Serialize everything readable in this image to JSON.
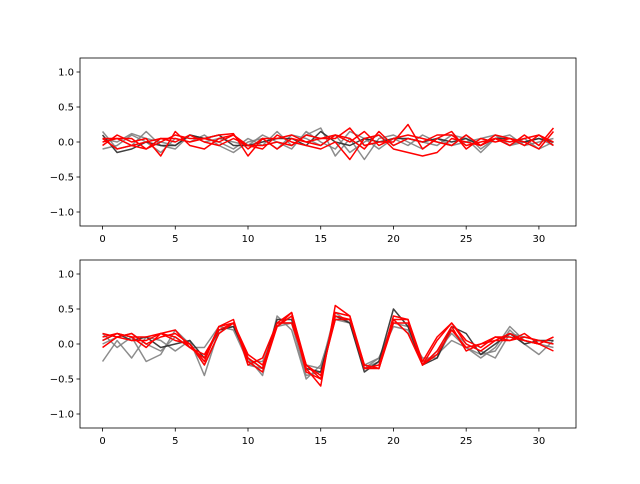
{
  "chart_data": [
    {
      "type": "line",
      "title": "",
      "xlabel": "",
      "ylabel": "",
      "xlim": [
        -1.55,
        32.55
      ],
      "ylim": [
        -1.2,
        1.2
      ],
      "xticks": [
        0,
        5,
        10,
        15,
        20,
        25,
        30
      ],
      "yticks": [
        -1.0,
        -0.5,
        0.0,
        0.5,
        1.0
      ],
      "ytick_labels": [
        "−1.0",
        "−0.5",
        "0.0",
        "0.5",
        "1.0"
      ],
      "grid": false,
      "x": [
        0,
        1,
        2,
        3,
        4,
        5,
        6,
        7,
        8,
        9,
        10,
        11,
        12,
        13,
        14,
        15,
        16,
        17,
        18,
        19,
        20,
        21,
        22,
        23,
        24,
        25,
        26,
        27,
        28,
        29,
        30,
        31
      ],
      "series_colors": {
        "gray": "#808080",
        "dark": "#2b2b2b",
        "red": "#ff0000"
      },
      "series": [
        {
          "color": "#808080",
          "values": [
            0.15,
            -0.1,
            -0.05,
            0.15,
            -0.05,
            -0.1,
            0.1,
            0.05,
            0.0,
            -0.1,
            0.05,
            -0.05,
            0.15,
            -0.05,
            0.1,
            0.2,
            -0.2,
            0.05,
            -0.25,
            0.05,
            0.1,
            0.0,
            -0.1,
            0.05,
            -0.05,
            0.1,
            -0.1,
            0.05,
            -0.05,
            0.0,
            0.05,
            -0.05
          ]
        },
        {
          "color": "#808080",
          "values": [
            -0.1,
            -0.05,
            0.1,
            0.0,
            -0.15,
            0.05,
            0.0,
            0.1,
            -0.05,
            -0.15,
            0.0,
            0.05,
            -0.1,
            0.1,
            0.05,
            -0.05,
            0.1,
            -0.15,
            0.0,
            0.1,
            -0.05,
            0.05,
            0.0,
            -0.05,
            0.1,
            0.05,
            -0.15,
            0.05,
            0.1,
            -0.05,
            0.0,
            0.05
          ]
        },
        {
          "color": "#808080",
          "values": [
            0.05,
            0.0,
            0.12,
            0.05,
            0.0,
            -0.05,
            0.1,
            0.0,
            0.05,
            0.0,
            -0.05,
            0.1,
            0.0,
            -0.1,
            0.15,
            0.0,
            -0.1,
            0.15,
            0.05,
            -0.1,
            0.05,
            -0.05,
            0.1,
            0.0,
            -0.05,
            0.0,
            0.05,
            0.1,
            -0.05,
            0.05,
            -0.1,
            0.0
          ]
        },
        {
          "color": "#2b2b2b",
          "values": [
            0.1,
            -0.15,
            -0.1,
            0.0,
            -0.05,
            -0.05,
            0.1,
            0.05,
            0.1,
            -0.05,
            -0.05,
            0.0,
            0.05,
            0.05,
            -0.05,
            0.15,
            0.0,
            -0.05,
            0.05,
            0.0,
            0.05,
            0.05,
            0.0,
            0.05,
            0.0,
            0.05,
            -0.05,
            0.05,
            0.05,
            0.0,
            0.05,
            0.0
          ]
        },
        {
          "color": "#ff0000",
          "values": [
            0.0,
            0.05,
            -0.05,
            -0.1,
            0.05,
            0.05,
            0.0,
            0.05,
            0.1,
            0.12,
            -0.2,
            0.05,
            -0.1,
            0.05,
            0.0,
            0.05,
            0.05,
            0.2,
            -0.05,
            0.0,
            0.0,
            0.25,
            -0.1,
            0.05,
            0.15,
            -0.1,
            0.05,
            0.0,
            0.05,
            0.0,
            -0.1,
            0.15
          ]
        },
        {
          "color": "#ff0000",
          "values": [
            -0.05,
            0.1,
            0.0,
            0.05,
            -0.2,
            0.15,
            -0.05,
            -0.1,
            0.05,
            0.1,
            -0.05,
            -0.1,
            0.1,
            0.0,
            -0.05,
            -0.1,
            0.0,
            -0.25,
            0.05,
            0.1,
            -0.1,
            -0.15,
            -0.2,
            -0.15,
            0.05,
            0.0,
            -0.05,
            0.1,
            0.05,
            -0.05,
            0.1,
            0.0
          ]
        },
        {
          "color": "#ff0000",
          "values": [
            0.05,
            -0.1,
            -0.05,
            0.0,
            0.05,
            0.0,
            0.1,
            0.0,
            -0.05,
            0.05,
            -0.05,
            -0.05,
            0.0,
            -0.05,
            0.1,
            0.05,
            0.1,
            0.0,
            0.15,
            -0.05,
            0.05,
            0.1,
            0.05,
            0.0,
            -0.05,
            0.1,
            -0.05,
            0.05,
            0.0,
            0.05,
            0.1,
            -0.05
          ]
        },
        {
          "color": "#ff0000",
          "values": [
            0.05,
            0.05,
            0.05,
            -0.1,
            0.0,
            0.1,
            0.05,
            0.05,
            0.0,
            0.1,
            -0.1,
            0.05,
            0.05,
            0.1,
            0.0,
            -0.05,
            0.1,
            0.05,
            -0.1,
            0.15,
            -0.05,
            0.05,
            0.0,
            0.1,
            0.1,
            -0.05,
            0.0,
            0.05,
            -0.05,
            0.1,
            -0.05,
            0.2
          ]
        }
      ]
    },
    {
      "type": "line",
      "title": "",
      "xlabel": "",
      "ylabel": "",
      "xlim": [
        -1.55,
        32.55
      ],
      "ylim": [
        -1.2,
        1.2
      ],
      "xticks": [
        0,
        5,
        10,
        15,
        20,
        25,
        30
      ],
      "yticks": [
        -1.0,
        -0.5,
        0.0,
        0.5,
        1.0
      ],
      "ytick_labels": [
        "−1.0",
        "−0.5",
        "0.0",
        "0.5",
        "1.0"
      ],
      "grid": false,
      "x": [
        0,
        1,
        2,
        3,
        4,
        5,
        6,
        7,
        8,
        9,
        10,
        11,
        12,
        13,
        14,
        15,
        16,
        17,
        18,
        19,
        20,
        21,
        22,
        23,
        24,
        25,
        26,
        27,
        28,
        29,
        30,
        31
      ],
      "series": [
        {
          "color": "#808080",
          "values": [
            -0.25,
            0.05,
            -0.2,
            0.1,
            0.05,
            -0.1,
            0.05,
            -0.45,
            0.2,
            0.25,
            -0.2,
            -0.45,
            0.4,
            0.2,
            -0.5,
            -0.3,
            0.35,
            0.3,
            -0.35,
            -0.2,
            0.25,
            0.2,
            -0.3,
            -0.1,
            0.15,
            -0.05,
            -0.15,
            -0.1,
            0.2,
            0.0,
            -0.15,
            0.05
          ]
        },
        {
          "color": "#808080",
          "values": [
            0.15,
            -0.05,
            0.1,
            -0.25,
            -0.15,
            0.2,
            0.0,
            -0.3,
            0.15,
            0.3,
            -0.3,
            -0.35,
            0.3,
            0.3,
            -0.3,
            -0.35,
            0.45,
            0.3,
            -0.3,
            -0.2,
            0.3,
            0.25,
            -0.25,
            -0.15,
            0.05,
            -0.05,
            -0.2,
            -0.05,
            0.25,
            0.05,
            0.0,
            -0.05
          ]
        },
        {
          "color": "#808080",
          "values": [
            0.0,
            0.1,
            0.15,
            0.0,
            -0.1,
            0.1,
            -0.05,
            -0.05,
            0.25,
            0.2,
            -0.25,
            -0.25,
            0.25,
            0.3,
            -0.45,
            -0.4,
            0.35,
            0.35,
            -0.35,
            -0.25,
            0.35,
            0.15,
            -0.2,
            -0.2,
            0.2,
            0.0,
            -0.1,
            -0.2,
            0.15,
            0.1,
            0.05,
            0.0
          ]
        },
        {
          "color": "#2b2b2b",
          "values": [
            0.05,
            0.15,
            0.05,
            0.1,
            -0.05,
            0.0,
            0.05,
            -0.2,
            0.2,
            0.25,
            -0.2,
            -0.35,
            0.35,
            0.35,
            -0.35,
            -0.4,
            0.4,
            0.3,
            -0.4,
            -0.25,
            0.5,
            0.25,
            -0.3,
            -0.2,
            0.25,
            0.15,
            -0.15,
            0.0,
            0.15,
            0.0,
            0.05,
            0.05
          ]
        },
        {
          "color": "#ff0000",
          "values": [
            0.1,
            0.15,
            0.1,
            -0.05,
            0.15,
            0.05,
            0.0,
            -0.25,
            0.25,
            0.35,
            -0.3,
            -0.2,
            0.3,
            0.45,
            -0.35,
            -0.6,
            0.55,
            0.4,
            -0.3,
            -0.35,
            0.4,
            0.35,
            -0.25,
            0.1,
            0.3,
            0.0,
            -0.1,
            0.05,
            0.05,
            0.15,
            0.0,
            -0.1
          ]
        },
        {
          "color": "#ff0000",
          "values": [
            0.15,
            0.1,
            0.05,
            0.05,
            0.15,
            0.2,
            -0.05,
            -0.15,
            0.2,
            0.3,
            -0.15,
            -0.3,
            0.25,
            0.45,
            -0.3,
            -0.45,
            0.35,
            0.35,
            -0.3,
            -0.35,
            0.35,
            0.15,
            -0.3,
            0.05,
            0.3,
            0.05,
            -0.05,
            0.1,
            0.1,
            0.05,
            0.0,
            0.1
          ]
        },
        {
          "color": "#ff0000",
          "values": [
            -0.05,
            0.1,
            0.15,
            0.0,
            0.1,
            0.15,
            0.0,
            -0.3,
            0.15,
            0.3,
            -0.25,
            -0.4,
            0.25,
            0.4,
            -0.4,
            -0.5,
            0.45,
            0.4,
            -0.35,
            -0.35,
            0.3,
            0.3,
            -0.3,
            -0.1,
            0.25,
            -0.1,
            0.0,
            0.1,
            0.05,
            0.1,
            0.05,
            0.0
          ]
        },
        {
          "color": "#ff0000",
          "values": [
            0.05,
            0.15,
            0.1,
            0.1,
            0.15,
            0.1,
            -0.05,
            -0.2,
            0.25,
            0.3,
            -0.2,
            -0.35,
            0.3,
            0.3,
            -0.3,
            -0.5,
            0.4,
            0.35,
            -0.35,
            -0.3,
            0.35,
            0.35,
            -0.3,
            -0.15,
            0.2,
            -0.05,
            0.0,
            0.05,
            0.15,
            0.05,
            0.0,
            0.1
          ]
        }
      ]
    }
  ]
}
